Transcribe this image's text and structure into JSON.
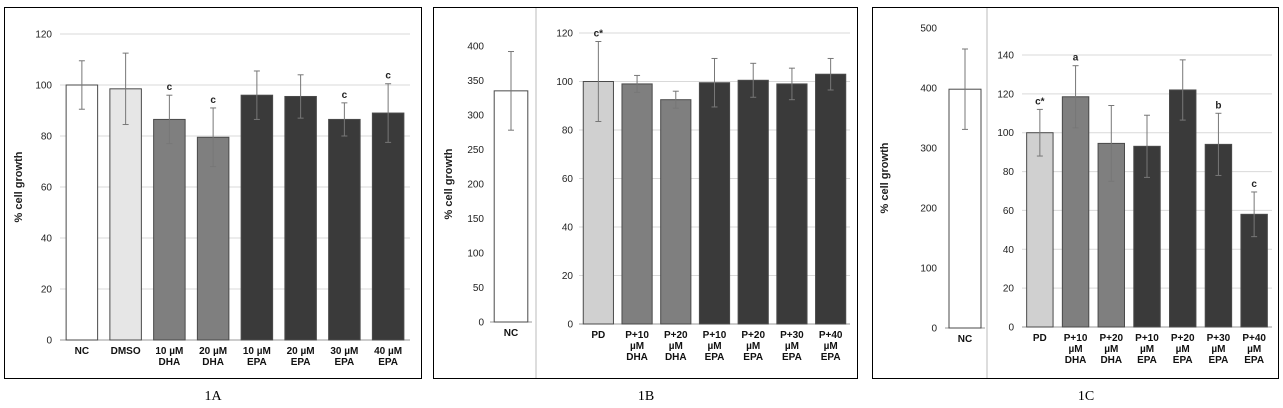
{
  "chart_data": [
    {
      "type": "bar",
      "panel": "1A",
      "ylabel": "% cell growth",
      "ylim": [
        0,
        120
      ],
      "yticks": [
        0,
        20,
        40,
        60,
        80,
        100,
        120
      ],
      "grid": true,
      "categories": [
        [
          "NC"
        ],
        [
          "DMSO"
        ],
        [
          "10 µM",
          "DHA"
        ],
        [
          "20 µM",
          "DHA"
        ],
        [
          "10 µM",
          "EPA"
        ],
        [
          "20 µM",
          "EPA"
        ],
        [
          "30 µM",
          "EPA"
        ],
        [
          "40 µM",
          "EPA"
        ]
      ],
      "values": [
        100,
        98.5,
        86.5,
        79.5,
        96,
        95.5,
        86.5,
        89
      ],
      "errors": [
        9.5,
        14,
        9.5,
        11.5,
        9.5,
        8.5,
        6.5,
        11.5
      ],
      "fills": [
        "#ffffff",
        "#e6e6e6",
        "#7f7f7f",
        "#7f7f7f",
        "#3a3a3a",
        "#3a3a3a",
        "#3a3a3a",
        "#3a3a3a"
      ],
      "annotations": [
        "",
        "",
        "c",
        "c",
        "",
        "",
        "c",
        "c"
      ]
    },
    {
      "type": "bar",
      "panel": "1B",
      "inset": {
        "ylabel": "% cell growth",
        "ylim": [
          0,
          400
        ],
        "yticks": [
          0,
          50,
          100,
          150,
          200,
          250,
          300,
          350,
          400
        ],
        "categories": [
          [
            "NC"
          ]
        ],
        "values": [
          335
        ],
        "errors": [
          57
        ],
        "fills": [
          "#ffffff"
        ],
        "annotations": [
          ""
        ]
      },
      "ylim": [
        0,
        120
      ],
      "yticks": [
        0,
        20,
        40,
        60,
        80,
        100,
        120
      ],
      "grid": true,
      "categories": [
        [
          "PD"
        ],
        [
          "P+10",
          "µM",
          "DHA"
        ],
        [
          "P+20",
          "µM",
          "DHA"
        ],
        [
          "P+10",
          "µM",
          "EPA"
        ],
        [
          "P+20",
          "µM",
          "EPA"
        ],
        [
          "P+30",
          "µM",
          "EPA"
        ],
        [
          "P+40",
          "µM",
          "EPA"
        ]
      ],
      "values": [
        100,
        99,
        92.5,
        99.5,
        100.5,
        99,
        103
      ],
      "errors": [
        16.5,
        3.5,
        3.5,
        10,
        7,
        6.5,
        6.5
      ],
      "fills": [
        "#d0d0d0",
        "#7f7f7f",
        "#7f7f7f",
        "#3a3a3a",
        "#3a3a3a",
        "#3a3a3a",
        "#3a3a3a"
      ],
      "annotations": [
        "c*",
        "",
        "",
        "",
        "",
        "",
        ""
      ]
    },
    {
      "type": "bar",
      "panel": "1C",
      "inset": {
        "ylabel": "% cell growth",
        "ylim": [
          0,
          500
        ],
        "yticks": [
          0,
          100,
          200,
          300,
          400,
          500
        ],
        "categories": [
          [
            "NC"
          ]
        ],
        "values": [
          398
        ],
        "errors": [
          67
        ],
        "fills": [
          "#ffffff"
        ],
        "annotations": [
          ""
        ]
      },
      "ylim": [
        0,
        140
      ],
      "yticks": [
        0,
        20,
        40,
        60,
        80,
        100,
        120,
        140
      ],
      "grid": true,
      "categories": [
        [
          "PD"
        ],
        [
          "P+10",
          "µM",
          "DHA"
        ],
        [
          "P+20",
          "µM",
          "DHA"
        ],
        [
          "P+10",
          "µM",
          "EPA"
        ],
        [
          "P+20",
          "µM",
          "EPA"
        ],
        [
          "P+30",
          "µM",
          "EPA"
        ],
        [
          "P+40",
          "µM",
          "EPA"
        ]
      ],
      "values": [
        100,
        118.5,
        94.5,
        93,
        122,
        94,
        58
      ],
      "errors": [
        12,
        16,
        19.5,
        16,
        15.5,
        16,
        11.5
      ],
      "fills": [
        "#d0d0d0",
        "#7f7f7f",
        "#7f7f7f",
        "#3a3a3a",
        "#3a3a3a",
        "#3a3a3a",
        "#3a3a3a"
      ],
      "annotations": [
        "c*",
        "a",
        "",
        "",
        "",
        "b",
        "c"
      ]
    }
  ],
  "captions": [
    "1A",
    "1B",
    "1C"
  ]
}
